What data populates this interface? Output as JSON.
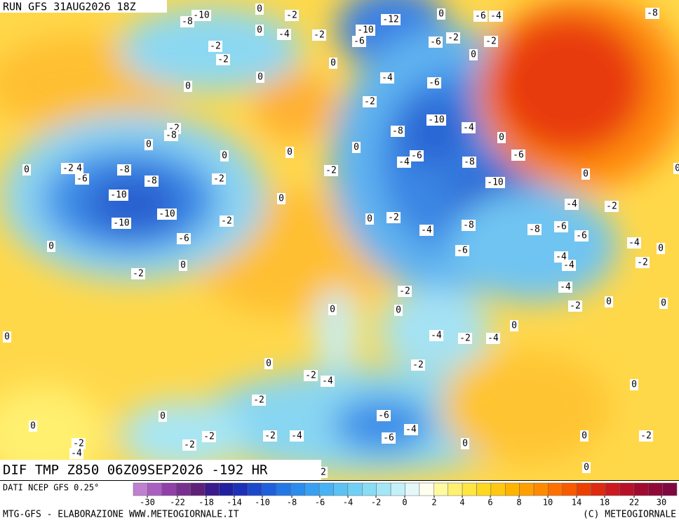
{
  "header": {
    "run": "RUN GFS 31AUG2026 18Z"
  },
  "title": "DIF TMP Z850 06Z09SEP2026 -192 HR",
  "source": "DATI NCEP GFS 0.25°",
  "footer": {
    "left": "MTG-GFS - ELABORAZIONE WWW.METEOGIORNALE.IT",
    "right": "(C) METEOGIORNALE"
  },
  "colorbar": {
    "ticks": [
      -30,
      -22,
      -18,
      -14,
      -10,
      -8,
      -6,
      -4,
      -2,
      0,
      2,
      4,
      6,
      8,
      10,
      14,
      18,
      22,
      30
    ],
    "colors": [
      "#c080d0",
      "#a860c0",
      "#9040a8",
      "#783090",
      "#602078",
      "#3a1a8c",
      "#2020a0",
      "#1c30b8",
      "#1c48cc",
      "#1e60dc",
      "#2478e6",
      "#2c8cee",
      "#38a0f2",
      "#48b2f4",
      "#5cc2f4",
      "#70d0f4",
      "#88dcf4",
      "#a4e6f6",
      "#c4f0f8",
      "#e4f8fa",
      "#fffff0",
      "#fffaa0",
      "#fff070",
      "#ffe640",
      "#ffd820",
      "#ffc810",
      "#ffb400",
      "#ffa000",
      "#ff8a00",
      "#ff7000",
      "#f85a00",
      "#ec4000",
      "#de2a10",
      "#cc1a20",
      "#b81028",
      "#a00a30",
      "#900838",
      "#800840"
    ]
  },
  "map": {
    "labels": [
      -10,
      -8,
      0,
      -2,
      -4,
      -2,
      -10,
      -12,
      -6,
      0,
      -6,
      -4,
      -2,
      -6,
      0,
      -2,
      -8,
      -2,
      -2,
      0,
      0,
      0,
      0,
      -4,
      -6,
      -2,
      -10,
      -8,
      -4,
      0,
      -6,
      -2,
      -8,
      0,
      0,
      0,
      0,
      -6,
      -4,
      -8,
      0,
      -2,
      4,
      -6,
      -8,
      -8,
      -2,
      -2,
      -10,
      0,
      0,
      -10,
      -10,
      -10,
      0,
      -2,
      0,
      -2,
      -4,
      -8,
      -8,
      -6,
      -6,
      -4,
      -2,
      -6,
      0,
      -6,
      -4,
      0,
      -4,
      -4,
      -2,
      0,
      -2,
      -4,
      -2,
      0,
      0,
      -2,
      0,
      0,
      0,
      -4,
      -2,
      -4,
      0,
      0,
      -2,
      -2,
      -4,
      0,
      -2,
      0,
      -6,
      -4,
      0,
      -2,
      -2,
      -2,
      -4,
      -6,
      0,
      -2,
      0,
      -2,
      -4,
      0,
      2
    ]
  }
}
